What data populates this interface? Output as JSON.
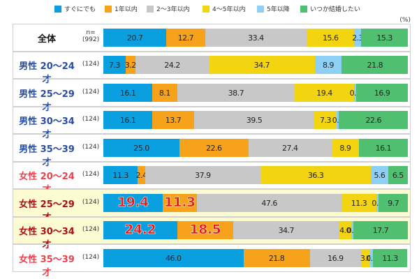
{
  "unit": "(%)",
  "colors": {
    "male_label": "#2a4da3",
    "female_label": "#e8434d",
    "female_label_hl": "#a8101a",
    "highlight_bg": "#fdfbd2",
    "big_label": "#e81717"
  },
  "chart_data": {
    "type": "bar",
    "orientation": "horizontal",
    "stacked": true,
    "xlim": [
      0,
      100
    ],
    "legend_position": "top",
    "grid": false,
    "header_n": "n=\n(992)",
    "categories": [
      "全体",
      "男性 20〜24才",
      "男性 25〜29才",
      "男性 30〜34才",
      "男性 35〜39才",
      "女性 20〜24才",
      "女性 25〜29才",
      "女性 30〜34才",
      "女性 35〜39才"
    ],
    "n": [
      "",
      "(124)",
      "(124)",
      "(124)",
      "(124)",
      "(124)",
      "(124)",
      "(124)",
      "(124)"
    ],
    "groups": [
      "all",
      "male",
      "male",
      "male",
      "male",
      "female",
      "female_hl",
      "female_hl",
      "female"
    ],
    "series": [
      {
        "name": "すぐにでも",
        "color": "#0aa0e0",
        "values": [
          20.7,
          7.3,
          16.1,
          16.1,
          25.0,
          11.3,
          19.4,
          24.2,
          46.0
        ]
      },
      {
        "name": "1年以内",
        "color": "#f7a21b",
        "values": [
          12.7,
          3.2,
          8.1,
          13.7,
          22.6,
          2.4,
          11.3,
          18.5,
          21.8
        ]
      },
      {
        "name": "2〜3年以内",
        "color": "#c8c8c8",
        "values": [
          33.4,
          24.2,
          38.7,
          39.5,
          27.4,
          37.9,
          47.6,
          34.7,
          16.9
        ]
      },
      {
        "name": "4〜5年以内",
        "color": "#f2d510",
        "values": [
          15.6,
          34.7,
          19.4,
          7.3,
          8.9,
          36.3,
          11.3,
          4.0,
          3.0
        ]
      },
      {
        "name": "5年以降",
        "color": "#8ecff5",
        "values": [
          2.3,
          8.9,
          0.8,
          0.8,
          0,
          5.6,
          0.8,
          0.8,
          0.8
        ]
      },
      {
        "name": "いつか結婚したい",
        "color": "#50c070",
        "values": [
          15.3,
          21.8,
          16.9,
          22.6,
          16.1,
          6.5,
          9.7,
          17.7,
          11.3
        ]
      }
    ],
    "emphasized_labels": [
      [
        6,
        0
      ],
      [
        6,
        1
      ],
      [
        7,
        0
      ],
      [
        7,
        1
      ]
    ]
  }
}
